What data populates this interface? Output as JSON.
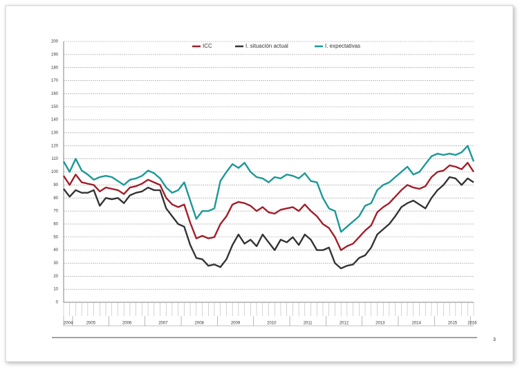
{
  "chart_data": {
    "type": "line",
    "categories": [
      "2004",
      null,
      "2005",
      null,
      null,
      null,
      null,
      null,
      "2006",
      null,
      null,
      null,
      null,
      null,
      "2007",
      null,
      null,
      null,
      null,
      null,
      "2008",
      null,
      null,
      null,
      null,
      null,
      "2009",
      null,
      null,
      null,
      null,
      null,
      "2010",
      null,
      null,
      null,
      null,
      null,
      "2011",
      null,
      null,
      null,
      null,
      null,
      "2012",
      null,
      null,
      null,
      null,
      null,
      "2013",
      null,
      null,
      null,
      null,
      null,
      "2014",
      null,
      null,
      null,
      null,
      null,
      "2015",
      null,
      null,
      null,
      null,
      null,
      "2016"
    ],
    "series": [
      {
        "name": "ICC",
        "color": "#a01e2a",
        "values": [
          97,
          90,
          98,
          92,
          91,
          90,
          85,
          88,
          87,
          86,
          83,
          88,
          89,
          91,
          94,
          92,
          90,
          80,
          75,
          73,
          75,
          61,
          49,
          51,
          49,
          50,
          60,
          66,
          75,
          77,
          76,
          74,
          70,
          73,
          69,
          68,
          71,
          72,
          73,
          70,
          75,
          70,
          66,
          60,
          57,
          50,
          40,
          43,
          45,
          50,
          55,
          59,
          69,
          73,
          76,
          81,
          86,
          90,
          88,
          87,
          89,
          96,
          100,
          101,
          105,
          104,
          102,
          107,
          100
        ]
      },
      {
        "name": "I. situación actual",
        "color": "#333333",
        "values": [
          87,
          81,
          86,
          84,
          84,
          86,
          74,
          80,
          79,
          80,
          76,
          82,
          84,
          85,
          88,
          86,
          86,
          72,
          66,
          60,
          58,
          44,
          34,
          33,
          28,
          29,
          27,
          33,
          44,
          52,
          45,
          48,
          43,
          52,
          46,
          40,
          48,
          46,
          50,
          44,
          52,
          48,
          40,
          40,
          42,
          30,
          26,
          28,
          29,
          34,
          36,
          42,
          52,
          56,
          60,
          66,
          73,
          76,
          78,
          75,
          72,
          80,
          86,
          90,
          96,
          95,
          90,
          95,
          92
        ]
      },
      {
        "name": "I. expectativas",
        "color": "#1a9896",
        "values": [
          108,
          100,
          110,
          101,
          98,
          94,
          96,
          97,
          96,
          93,
          90,
          94,
          95,
          97,
          101,
          99,
          95,
          88,
          84,
          86,
          92,
          78,
          64,
          70,
          70,
          72,
          93,
          100,
          106,
          103,
          107,
          100,
          96,
          95,
          92,
          96,
          95,
          98,
          97,
          95,
          99,
          93,
          92,
          80,
          72,
          70,
          54,
          58,
          62,
          66,
          74,
          76,
          86,
          90,
          92,
          96,
          100,
          104,
          98,
          100,
          106,
          112,
          114,
          113,
          114,
          113,
          115,
          120,
          108
        ]
      }
    ],
    "ylim": [
      0,
      200
    ],
    "yticks": [
      0,
      10,
      20,
      30,
      40,
      50,
      60,
      70,
      80,
      90,
      100,
      110,
      120,
      130,
      140,
      150,
      160,
      170,
      180,
      190,
      200
    ],
    "grid": true,
    "legend": "top"
  },
  "page_number": "3"
}
